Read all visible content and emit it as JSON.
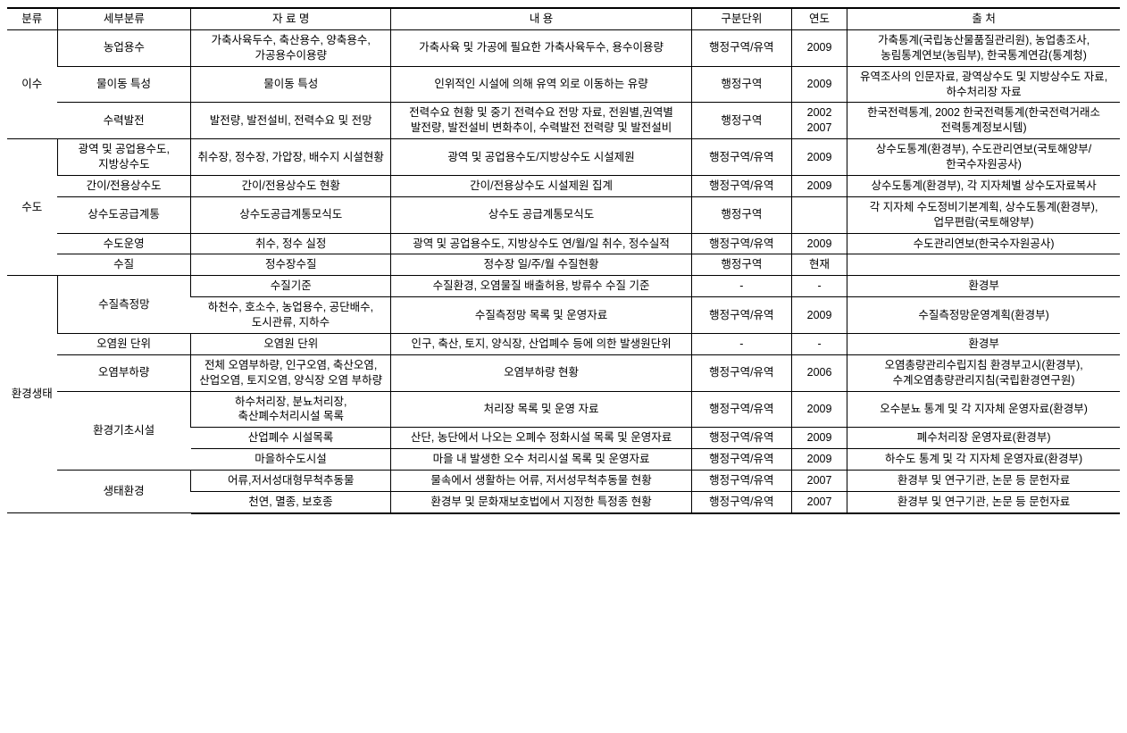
{
  "headers": [
    "분류",
    "세부분류",
    "자 료 명",
    "내 용",
    "구분단위",
    "연도",
    "출 처"
  ],
  "rows": [
    {
      "cat": "이수",
      "sub": "농업용수",
      "name": "가축사육두수, 축산용수, 양축용수, 가공용수이용량",
      "desc": "가축사육 및 가공에 필요한 가축사육두수, 용수이용량",
      "unit": "행정구역/유역",
      "year": "2009",
      "src": "가축통계(국립농산물품질관리원), 농업총조사, 농림통계연보(농림부), 한국통계연감(통계청)"
    },
    {
      "cat": "이수",
      "sub": "물이동 특성",
      "name": "물이동 특성",
      "desc": "인위적인 시설에 의해 유역 외로 이동하는 유량",
      "unit": "행정구역",
      "year": "2009",
      "src": "유역조사의 인문자료, 광역상수도 및 지방상수도 자료, 하수처리장 자료"
    },
    {
      "cat": "이수",
      "sub": "수력발전",
      "name": "발전량, 발전설비, 전력수요 및 전망",
      "desc": "전력수요 현황 및 중기 전력수요 전망 자료, 전원별,권역별 발전량, 발전설비 변화추이, 수력발전 전력량 및 발전설비",
      "unit": "행정구역",
      "year": "2002 2007",
      "src": "한국전력통계, 2002 한국전력통계(한국전력거래소 전력통계정보시템)"
    },
    {
      "cat": "수도",
      "sub": "광역 및 공업용수도, 지방상수도",
      "name": "취수장, 정수장, 가압장, 배수지 시설현황",
      "desc": "광역 및 공업용수도/지방상수도 시설제원",
      "unit": "행정구역/유역",
      "year": "2009",
      "src": "상수도통계(환경부), 수도관리연보(국토해양부/한국수자원공사)"
    },
    {
      "cat": "수도",
      "sub": "간이/전용상수도",
      "name": "간이/전용상수도 현황",
      "desc": "간이/전용상수도 시설제원 집계",
      "unit": "행정구역/유역",
      "year": "2009",
      "src": "상수도통계(환경부), 각 지자체별 상수도자료복사"
    },
    {
      "cat": "수도",
      "sub": "상수도공급계통",
      "name": "상수도공급계통모식도",
      "desc": "상수도 공급계통모식도",
      "unit": "행정구역",
      "year": "",
      "src": "각 지자체 수도정비기본계획, 상수도통계(환경부), 업무편람(국토해양부)"
    },
    {
      "cat": "수도",
      "sub": "수도운영",
      "name": "취수, 정수 실정",
      "desc": "광역 및 공업용수도, 지방상수도 연/월/일 취수, 정수실적",
      "unit": "행정구역/유역",
      "year": "2009",
      "src": "수도관리연보(한국수자원공사)"
    },
    {
      "cat": "수도",
      "sub": "수질",
      "name": "정수장수질",
      "desc": "정수장 일/주/월 수질현황",
      "unit": "행정구역",
      "year": "현재",
      "src": ""
    },
    {
      "cat": "환경생태",
      "sub": "수질측정망",
      "name": "수질기준",
      "desc": "수질환경, 오염물질 배출허용, 방류수 수질 기준",
      "unit": "-",
      "year": "-",
      "src": "환경부"
    },
    {
      "cat": "환경생태",
      "sub": "수질측정망",
      "name": "하천수, 호소수, 농업용수, 공단배수, 도시관류, 지하수",
      "desc": "수질측정망 목록 및 운영자료",
      "unit": "행정구역/유역",
      "year": "2009",
      "src": "수질측정망운영계획(환경부)"
    },
    {
      "cat": "환경생태",
      "sub": "오염원 단위",
      "name": "오염원 단위",
      "desc": "인구, 축산, 토지, 양식장, 산업폐수 등에 의한 발생원단위",
      "unit": "-",
      "year": "-",
      "src": "환경부"
    },
    {
      "cat": "환경생태",
      "sub": "오염부하량",
      "name": "전체 오염부하량, 인구오염, 축산오염, 산업오염, 토지오염, 양식장 오염 부하량",
      "desc": "오염부하량 현황",
      "unit": "행정구역/유역",
      "year": "2006",
      "src": "오염총량관리수립지침 환경부고시(환경부), 수계오염총량관리지침(국립환경연구원)"
    },
    {
      "cat": "환경생태",
      "sub": "환경기초시설",
      "name": "하수처리장, 분뇨처리장, 축산폐수처리시설 목록",
      "desc": "처리장 목록 및 운영 자료",
      "unit": "행정구역/유역",
      "year": "2009",
      "src": "오수분뇨 통계 및 각 지자체 운영자료(환경부)"
    },
    {
      "cat": "환경생태",
      "sub": "환경기초시설",
      "name": "산업폐수 시설목록",
      "desc": "산단, 농단에서 나오는 오폐수 정화시설 목록 및 운영자료",
      "unit": "행정구역/유역",
      "year": "2009",
      "src": "폐수처리장 운영자료(환경부)"
    },
    {
      "cat": "환경생태",
      "sub": "환경기초시설",
      "name": "마을하수도시설",
      "desc": "마을 내 발생한 오수 처리시설 목록 및 운영자료",
      "unit": "행정구역/유역",
      "year": "2009",
      "src": "하수도 통계 및 각 지자체 운영자료(환경부)"
    },
    {
      "cat": "환경생태",
      "sub": "생태환경",
      "name": "어류,저서성대형무척추동물",
      "desc": "물속에서 생활하는 어류, 저서성무척추동물 현황",
      "unit": "행정구역/유역",
      "year": "2007",
      "src": "환경부 및 연구기관, 논문 등 문헌자료"
    },
    {
      "cat": "환경생태",
      "sub": "생태환경",
      "name": "천연, 멸종, 보호종",
      "desc": "환경부 및 문화재보호법에서 지정한 특정종 현황",
      "unit": "행정구역/유역",
      "year": "2007",
      "src": "환경부 및 연구기관, 논문 등 문헌자료"
    }
  ],
  "catSpans": {
    "이수": 3,
    "수도": 5,
    "환경생태": 9
  },
  "subSpans": {
    "수질측정망": 2,
    "환경기초시설": 3,
    "생태환경": 2
  }
}
